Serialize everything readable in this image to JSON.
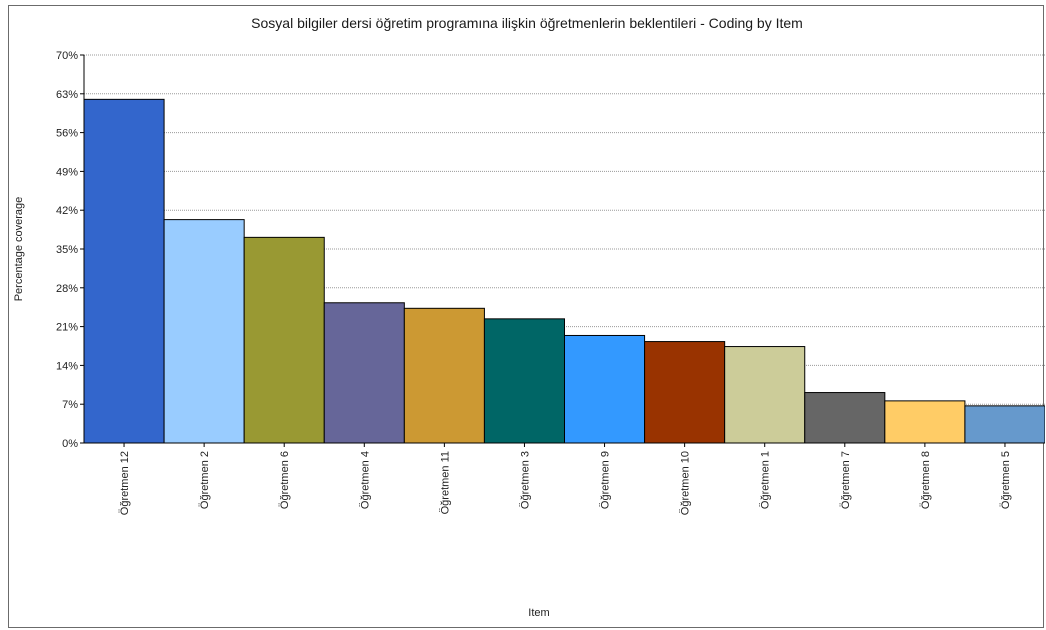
{
  "chart_data": {
    "type": "bar",
    "title": "Sosyal bilgiler dersi öğretim programına ilişkin öğretmenlerin beklentileri - Coding by Item",
    "xlabel": "Item",
    "ylabel": "Percentage coverage",
    "ylim": [
      0,
      70
    ],
    "yticks": [
      "0%",
      "7%",
      "14%",
      "21%",
      "28%",
      "35%",
      "42%",
      "49%",
      "56%",
      "63%",
      "70%"
    ],
    "grid": true,
    "categories": [
      "Öğretmen 12",
      "Öğretmen 2",
      "Öğretmen 6",
      "Öğretmen 4",
      "Öğretmen 11",
      "Öğretmen 3",
      "Öğretmen 9",
      "Öğretmen 10",
      "Öğretmen 1",
      "Öğretmen 7",
      "Öğretmen 8",
      "Öğretmen 5"
    ],
    "values": [
      62.0,
      40.3,
      37.1,
      25.3,
      24.3,
      22.4,
      19.4,
      18.3,
      17.4,
      9.1,
      7.6,
      6.7
    ],
    "colors": [
      "#3366cc",
      "#99ccff",
      "#999933",
      "#666699",
      "#cc9933",
      "#006666",
      "#3399ff",
      "#993300",
      "#cccc99",
      "#666666",
      "#ffcc66",
      "#6699cc"
    ]
  }
}
